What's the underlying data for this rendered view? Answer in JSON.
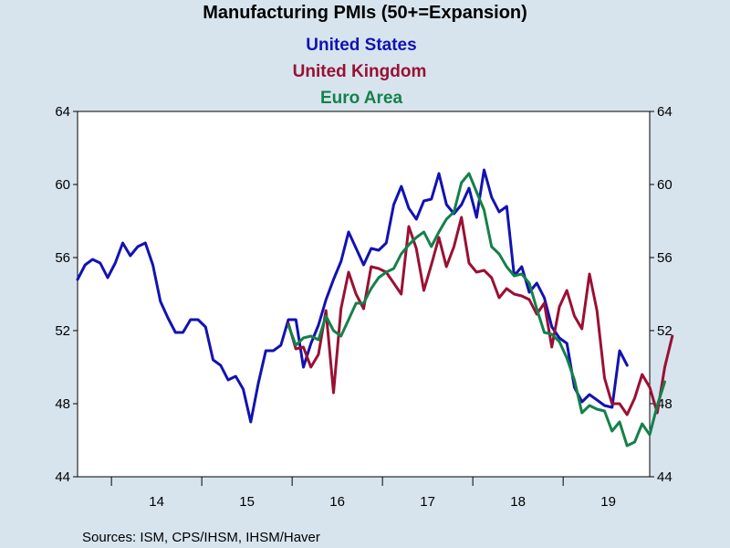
{
  "chart_data": {
    "type": "line",
    "title": "Manufacturing PMIs (50+=Expansion)",
    "source": "Sources:  ISM, CPS/IHSM, IHSM/Haver",
    "ylim": [
      44,
      64
    ],
    "yticks": [
      44,
      48,
      52,
      56,
      60,
      64
    ],
    "y_axis_sides": "left and right",
    "xlim": [
      2013.625,
      2019.958
    ],
    "year_labels": [
      "14",
      "15",
      "16",
      "17",
      "18",
      "19"
    ],
    "grid": false,
    "legend_placement": "top-center",
    "colors": {
      "background": "#d7e4ee",
      "plot": "#ffffff"
    },
    "series": [
      {
        "name": "United States",
        "color": "#1212b3",
        "start": 2013.625,
        "values": [
          54.8,
          55.6,
          55.9,
          55.7,
          54.9,
          55.7,
          56.8,
          56.1,
          56.6,
          56.8,
          55.6,
          53.6,
          52.7,
          51.9,
          51.9,
          52.6,
          52.6,
          52.2,
          50.4,
          50.1,
          49.3,
          49.5,
          48.8,
          47.0,
          49.1,
          50.9,
          50.9,
          51.2,
          52.6,
          52.6,
          50.0,
          51.3,
          52.3,
          53.7,
          54.8,
          55.8,
          57.4,
          56.5,
          55.6,
          56.5,
          56.4,
          56.8,
          58.9,
          59.9,
          58.7,
          58.1,
          59.1,
          59.2,
          60.6,
          58.9,
          58.4,
          58.9,
          59.8,
          58.2,
          60.8,
          59.3,
          58.5,
          58.8,
          55.0,
          55.5,
          54.1,
          54.6,
          53.8,
          52.2,
          51.6,
          51.3,
          48.9,
          48.1,
          48.5,
          48.2,
          47.9,
          47.8,
          50.9,
          50.1
        ]
      },
      {
        "name": "United Kingdom",
        "color": "#9a1033",
        "start": 2015.958,
        "values": [
          52.4,
          51.0,
          51.1,
          50.0,
          50.7,
          53.1,
          48.6,
          53.2,
          55.2,
          54.0,
          53.2,
          55.5,
          55.4,
          55.2,
          54.6,
          54.0,
          57.7,
          56.5,
          54.2,
          55.6,
          57.1,
          55.5,
          56.6,
          58.2,
          55.7,
          55.2,
          55.3,
          54.9,
          53.8,
          54.3,
          54.0,
          53.9,
          53.7,
          52.9,
          53.5,
          51.1,
          53.3,
          54.2,
          52.8,
          52.1,
          55.1,
          53.1,
          49.4,
          48.0,
          48.0,
          47.4,
          48.3,
          49.6,
          48.9,
          47.5,
          50.0,
          51.7
        ]
      },
      {
        "name": "Euro Area",
        "color": "#14814a",
        "start": 2015.958,
        "values": [
          52.3,
          51.2,
          51.6,
          51.7,
          51.5,
          52.8,
          52.0,
          51.7,
          52.6,
          53.5,
          53.5,
          54.3,
          54.9,
          55.2,
          55.4,
          56.2,
          56.7,
          57.1,
          57.4,
          56.6,
          57.4,
          58.1,
          58.5,
          60.1,
          60.6,
          59.6,
          58.6,
          56.6,
          56.2,
          55.5,
          55.0,
          55.1,
          54.6,
          53.2,
          51.9,
          51.8,
          51.4,
          50.5,
          49.3,
          47.5,
          47.9,
          47.7,
          47.6,
          46.5,
          47.0,
          45.7,
          45.9,
          46.9,
          46.3,
          47.9,
          49.2
        ]
      }
    ]
  }
}
